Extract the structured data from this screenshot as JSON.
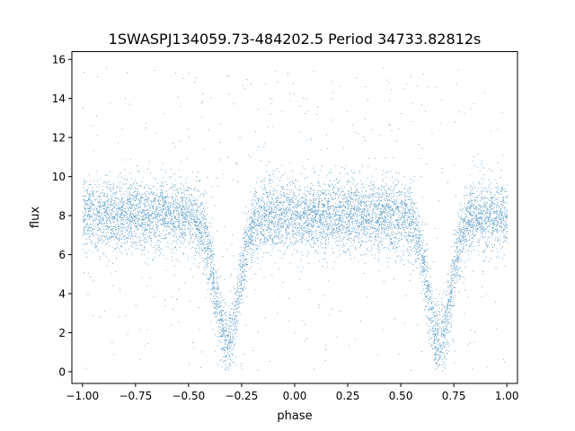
{
  "chart_data": {
    "type": "scatter",
    "title": "1SWASPJ134059.73-484202.5 Period 34733.82812s",
    "xlabel": "phase",
    "ylabel": "flux",
    "xlim": [
      -1.05,
      1.05
    ],
    "ylim": [
      -0.6,
      16.4
    ],
    "xticks": [
      -1.0,
      -0.75,
      -0.5,
      -0.25,
      0.0,
      0.25,
      0.5,
      0.75,
      1.0
    ],
    "xtick_labels": [
      "−1.00",
      "−0.75",
      "−0.50",
      "−0.25",
      "0.00",
      "0.25",
      "0.50",
      "0.75",
      "1.00"
    ],
    "yticks": [
      0,
      2,
      4,
      6,
      8,
      10,
      12,
      14,
      16
    ],
    "ytick_labels": [
      "0",
      "2",
      "4",
      "6",
      "8",
      "10",
      "12",
      "14",
      "16"
    ],
    "grid": false,
    "marker_color": "#1f77b4",
    "series": [
      {
        "description_of_shape": "phase-folded light curve",
        "baseline_flux": 8.0,
        "scatter_sigma": 0.9,
        "minima": [
          {
            "phase": -0.32,
            "flux": 1.5,
            "half_width": 0.1
          },
          {
            "phase": 0.68,
            "flux": 1.5,
            "half_width": 0.1
          }
        ],
        "phase_range": [
          -1.0,
          1.0
        ],
        "flux_range": [
          0.0,
          15.6
        ],
        "point_count": 9000
      }
    ]
  }
}
